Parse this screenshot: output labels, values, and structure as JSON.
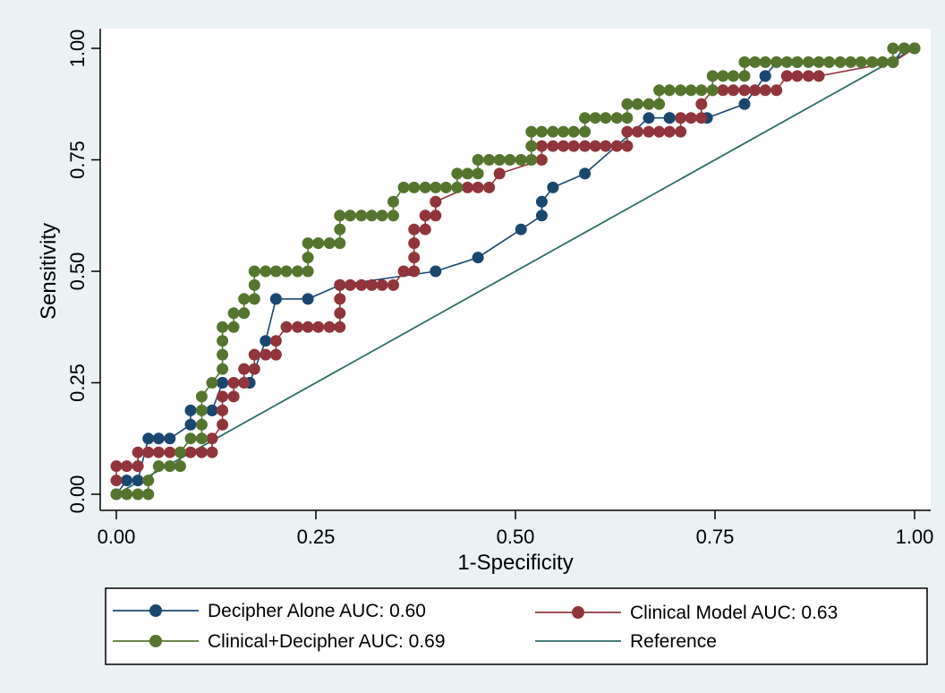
{
  "chart_data": {
    "type": "line",
    "xlabel": "1-Specificity",
    "ylabel": "Sensitivity",
    "xlim": [
      0,
      1
    ],
    "ylim": [
      0,
      1
    ],
    "xticks": [
      "0.00",
      "0.25",
      "0.50",
      "0.75",
      "1.00"
    ],
    "yticks": [
      "0.00",
      "0.25",
      "0.50",
      "0.75",
      "1.00"
    ],
    "grid": false,
    "legend_position": "bottom",
    "series": [
      {
        "name": "Decipher Alone AUC: 0.60",
        "color": "#1a476f",
        "markers": true,
        "x": [
          0,
          0.013,
          0.027,
          0.04,
          0.053,
          0.067,
          0.093,
          0.093,
          0.12,
          0.12,
          0.133,
          0.133,
          0.167,
          0.167,
          0.187,
          0.2,
          0.24,
          0.28,
          0.4,
          0.453,
          0.507,
          0.533,
          0.533,
          0.547,
          0.587,
          0.667,
          0.693,
          0.693,
          0.74,
          0.787,
          0.813,
          0.813,
          0.827,
          0.853,
          0.973,
          0.987,
          1.0
        ],
        "y": [
          0,
          0.031,
          0.031,
          0.125,
          0.125,
          0.125,
          0.156,
          0.188,
          0.188,
          0.188,
          0.25,
          0.25,
          0.25,
          0.25,
          0.344,
          0.438,
          0.438,
          0.469,
          0.5,
          0.531,
          0.594,
          0.625,
          0.656,
          0.688,
          0.719,
          0.844,
          0.844,
          0.844,
          0.844,
          0.875,
          0.938,
          0.938,
          0.969,
          0.969,
          0.969,
          1.0,
          1.0
        ]
      },
      {
        "name": "Clinical Model AUC: 0.63",
        "color": "#90353b",
        "markers": true,
        "x": [
          0,
          0,
          0.013,
          0.027,
          0.027,
          0.04,
          0.053,
          0.067,
          0.08,
          0.093,
          0.107,
          0.12,
          0.12,
          0.133,
          0.133,
          0.133,
          0.147,
          0.147,
          0.16,
          0.16,
          0.173,
          0.173,
          0.187,
          0.2,
          0.2,
          0.213,
          0.227,
          0.24,
          0.253,
          0.267,
          0.28,
          0.28,
          0.28,
          0.28,
          0.293,
          0.307,
          0.32,
          0.333,
          0.347,
          0.36,
          0.373,
          0.373,
          0.373,
          0.373,
          0.387,
          0.387,
          0.4,
          0.4,
          0.4,
          0.44,
          0.453,
          0.467,
          0.48,
          0.533,
          0.533,
          0.547,
          0.56,
          0.573,
          0.587,
          0.6,
          0.613,
          0.627,
          0.64,
          0.64,
          0.653,
          0.667,
          0.68,
          0.693,
          0.707,
          0.707,
          0.72,
          0.733,
          0.733,
          0.747,
          0.76,
          0.773,
          0.787,
          0.8,
          0.813,
          0.827,
          0.84,
          0.853,
          0.867,
          0.88,
          0.973,
          1.0
        ],
        "y": [
          0.031,
          0.063,
          0.063,
          0.063,
          0.094,
          0.094,
          0.094,
          0.094,
          0.094,
          0.094,
          0.094,
          0.094,
          0.125,
          0.156,
          0.188,
          0.219,
          0.219,
          0.25,
          0.25,
          0.281,
          0.281,
          0.313,
          0.313,
          0.313,
          0.344,
          0.375,
          0.375,
          0.375,
          0.375,
          0.375,
          0.375,
          0.406,
          0.438,
          0.469,
          0.469,
          0.469,
          0.469,
          0.469,
          0.469,
          0.5,
          0.5,
          0.531,
          0.563,
          0.594,
          0.594,
          0.625,
          0.625,
          0.656,
          0.656,
          0.688,
          0.688,
          0.688,
          0.719,
          0.75,
          0.781,
          0.781,
          0.781,
          0.781,
          0.781,
          0.781,
          0.781,
          0.781,
          0.781,
          0.813,
          0.813,
          0.813,
          0.813,
          0.813,
          0.813,
          0.844,
          0.844,
          0.844,
          0.875,
          0.906,
          0.906,
          0.906,
          0.906,
          0.906,
          0.906,
          0.906,
          0.938,
          0.938,
          0.938,
          0.938,
          0.969,
          1.0
        ]
      },
      {
        "name": "Clinical+Decipher AUC: 0.69",
        "color": "#55752f",
        "markers": true,
        "x": [
          0,
          0.013,
          0.027,
          0.04,
          0.04,
          0.053,
          0.067,
          0.08,
          0.08,
          0.093,
          0.107,
          0.107,
          0.107,
          0.107,
          0.12,
          0.133,
          0.133,
          0.133,
          0.133,
          0.147,
          0.147,
          0.16,
          0.16,
          0.173,
          0.173,
          0.173,
          0.187,
          0.2,
          0.213,
          0.227,
          0.24,
          0.24,
          0.24,
          0.253,
          0.267,
          0.28,
          0.28,
          0.28,
          0.293,
          0.307,
          0.32,
          0.333,
          0.347,
          0.347,
          0.36,
          0.373,
          0.387,
          0.4,
          0.413,
          0.427,
          0.427,
          0.44,
          0.453,
          0.453,
          0.467,
          0.48,
          0.493,
          0.507,
          0.52,
          0.52,
          0.52,
          0.533,
          0.547,
          0.56,
          0.573,
          0.587,
          0.587,
          0.6,
          0.613,
          0.627,
          0.64,
          0.64,
          0.653,
          0.667,
          0.68,
          0.68,
          0.693,
          0.707,
          0.72,
          0.733,
          0.747,
          0.747,
          0.76,
          0.773,
          0.787,
          0.787,
          0.8,
          0.813,
          0.827,
          0.84,
          0.853,
          0.867,
          0.88,
          0.893,
          0.907,
          0.92,
          0.933,
          0.947,
          0.96,
          0.973,
          0.973,
          0.987,
          1.0
        ],
        "y": [
          0,
          0,
          0,
          0,
          0.031,
          0.063,
          0.063,
          0.063,
          0.094,
          0.125,
          0.125,
          0.156,
          0.188,
          0.219,
          0.25,
          0.281,
          0.313,
          0.344,
          0.375,
          0.375,
          0.406,
          0.406,
          0.438,
          0.438,
          0.469,
          0.5,
          0.5,
          0.5,
          0.5,
          0.5,
          0.5,
          0.531,
          0.563,
          0.563,
          0.563,
          0.563,
          0.594,
          0.625,
          0.625,
          0.625,
          0.625,
          0.625,
          0.625,
          0.656,
          0.688,
          0.688,
          0.688,
          0.688,
          0.688,
          0.688,
          0.719,
          0.719,
          0.719,
          0.75,
          0.75,
          0.75,
          0.75,
          0.75,
          0.75,
          0.781,
          0.813,
          0.813,
          0.813,
          0.813,
          0.813,
          0.813,
          0.844,
          0.844,
          0.844,
          0.844,
          0.844,
          0.875,
          0.875,
          0.875,
          0.875,
          0.906,
          0.906,
          0.906,
          0.906,
          0.906,
          0.906,
          0.938,
          0.938,
          0.938,
          0.938,
          0.969,
          0.969,
          0.969,
          0.969,
          0.969,
          0.969,
          0.969,
          0.969,
          0.969,
          0.969,
          0.969,
          0.969,
          0.969,
          0.969,
          0.969,
          1.0,
          1.0,
          1.0
        ]
      },
      {
        "name": "Reference",
        "color": "#2d6d66",
        "markers": false,
        "x": [
          0,
          1
        ],
        "y": [
          0,
          1
        ]
      }
    ]
  }
}
